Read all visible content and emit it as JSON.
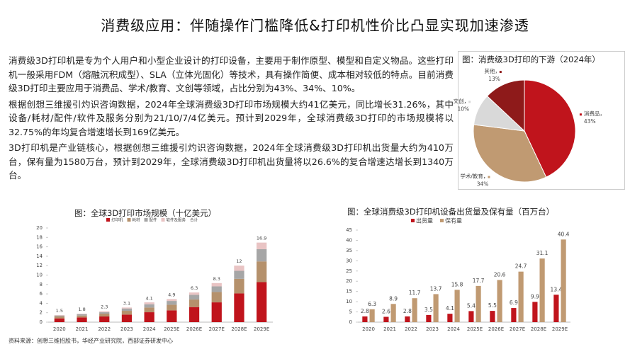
{
  "title": "消费级应用：伴随操作门槛降低&打印机性价比凸显实现加速渗透",
  "paragraphs": [
    "消费级3D打印机是专为个人用户和小型企业设计的打印设备，主要用于制作原型、模型和自定义物品。这些打印机一般采用FDM（熔融沉积成型）、SLA（立体光固化）等技术，具有操作简便、成本相对较低的特点。目前消费级3D打印主要应用于消费品、学术/教育、文创等领域，占比分别为43%、34%、10%。",
    "根据创想三维援引灼识咨询数据，2024年全球消费级3D打印市场规模大约41亿美元，同比增长31.26%，其中设备/耗材/配件/软件及服务分别为21/10/7/4亿美元。预计到2029年，全球消费级3D打印的市场规模将以32.75%的年均复合增速增长到169亿美元。",
    "3D打印机是产业链核心，根据创想三维援引灼识咨询数据，2024年全球消费级3D打印机出货量大约为410万台，保有量为1580万台，预计到2029年，全球消费级3D打印机出货量将以26.6%的复合增速达增长到1340万台。"
  ],
  "source": "资料来源：创想三维招股书，华经产业研究院，西部证券研发中心",
  "chart_data": [
    {
      "type": "pie",
      "title": "图：消费级3D打印的下游（2024年）",
      "categories": [
        "消费品，",
        "学术/教育，",
        "文创，",
        "其他，"
      ],
      "values": [
        43,
        34,
        10,
        13
      ],
      "value_labels": [
        "43%",
        "34%",
        "10%",
        "13%"
      ],
      "colors": [
        "#c0141c",
        "#c09a72",
        "#d9d9d9",
        "#8e1a1a"
      ]
    },
    {
      "type": "stacked_bar",
      "title": "图：全球3D打印市场规模（十亿美元）",
      "categories": [
        "2020",
        "2021",
        "2022",
        "2023",
        "2024",
        "2025E",
        "2026E",
        "2027E",
        "2028E",
        "2029E"
      ],
      "series": [
        {
          "name": "打印机",
          "color": "#c0141c",
          "values": [
            0.8,
            1.0,
            1.2,
            1.6,
            2.1,
            2.5,
            3.2,
            4.2,
            6.1,
            8.5
          ]
        },
        {
          "name": "耗材",
          "color": "#b5916c",
          "values": [
            0.4,
            0.4,
            0.6,
            0.8,
            1.0,
            1.2,
            1.6,
            2.2,
            3.1,
            4.4
          ]
        },
        {
          "name": "配件",
          "color": "#a6a6a6",
          "values": [
            0.2,
            0.3,
            0.3,
            0.5,
            0.7,
            0.8,
            1.0,
            1.2,
            1.7,
            2.6
          ]
        },
        {
          "name": "软件及服务",
          "color": "#e9c4c4",
          "values": [
            0.1,
            0.1,
            0.2,
            0.2,
            0.4,
            0.4,
            0.5,
            0.7,
            1.1,
            1.4
          ]
        }
      ],
      "totals": {
        "name": "合计",
        "values": [
          1.5,
          1.8,
          2.3,
          3.1,
          4.1,
          4.9,
          6.3,
          8.3,
          12,
          16.9
        ]
      },
      "ylim": [
        0,
        20
      ],
      "yticks": [
        0,
        2,
        4,
        6,
        8,
        10,
        12,
        14,
        16,
        18,
        20
      ]
    },
    {
      "type": "grouped_bar",
      "title": "图：全球消费级3D打印机设备出货量及保有量（百万台）",
      "categories": [
        "2020",
        "2021",
        "2022",
        "2023",
        "2024",
        "2025E",
        "2026E",
        "2027E",
        "2028E",
        "2029E"
      ],
      "series": [
        {
          "name": "出货量",
          "color": "#c0141c",
          "values": [
            2.8,
            2.6,
            2.8,
            3.5,
            4.1,
            5.4,
            5.5,
            6.9,
            9.9,
            13.4
          ]
        },
        {
          "name": "保有量",
          "color": "#c09a72",
          "values": [
            6.3,
            8.9,
            11.7,
            13.7,
            15.8,
            17.7,
            20.6,
            24.7,
            31.1,
            40.4
          ]
        }
      ],
      "ylim": [
        0,
        45
      ],
      "yticks": [
        0,
        5,
        10,
        15,
        20,
        25,
        30,
        35,
        40,
        45
      ]
    }
  ]
}
